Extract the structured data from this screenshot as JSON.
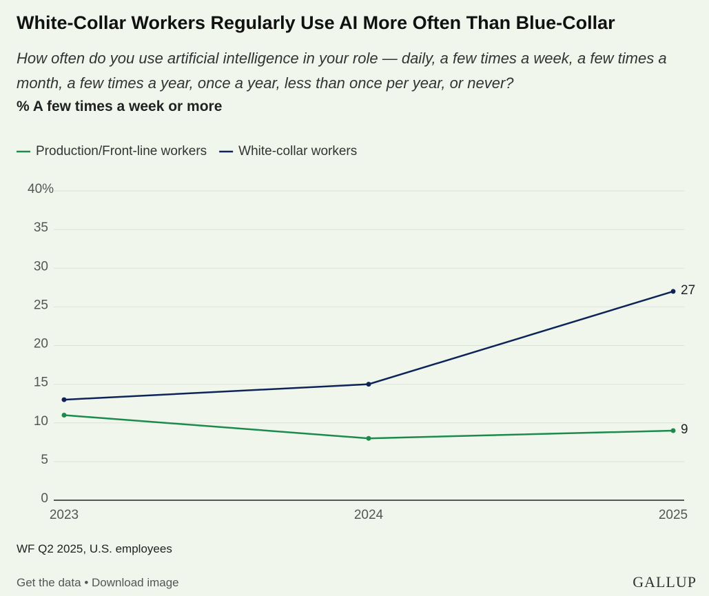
{
  "chart_data": {
    "type": "line",
    "title": "White-Collar Workers Regularly Use AI More Often Than Blue-Collar",
    "subtitle": "How often do you use artificial intelligence in your role — daily, a few times a week, a few times a month, a few times a year, once a year, less than once per year, or never?",
    "measure": "% A few times a week or more",
    "categories": [
      "2023",
      "2024",
      "2025"
    ],
    "series": [
      {
        "name": "Production/Front-line workers",
        "color": "#1b8a4b",
        "values": [
          11,
          8,
          9
        ]
      },
      {
        "name": "White-collar workers",
        "color": "#0e2358",
        "values": [
          13,
          15,
          27
        ]
      }
    ],
    "ylim": [
      0,
      40
    ],
    "yticks": [
      0,
      5,
      10,
      15,
      20,
      25,
      30,
      35,
      {
        "value": 40,
        "label": "40%"
      }
    ],
    "grid": true,
    "legend": "top-left"
  },
  "source": "WF Q2 2025, U.S. employees",
  "links": [
    "Get the data",
    "Download image"
  ],
  "separator": "•",
  "logo": "GALLUP"
}
